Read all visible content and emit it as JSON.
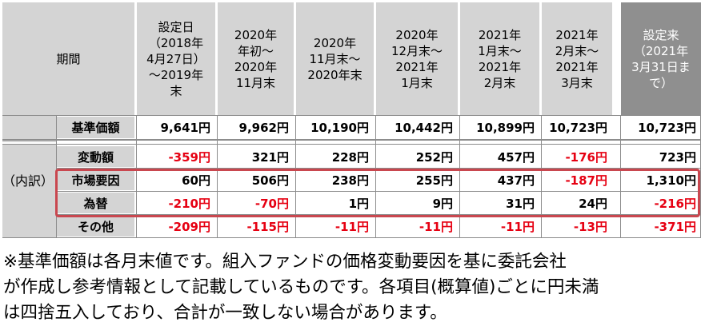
{
  "header": {
    "period_label": "期間",
    "periods": [
      "設定日\n（2018年\n4月27日）\n～2019年\n末",
      "2020年\n年初～\n2020年\n11月末",
      "2020年\n11月末～\n2020年末",
      "2020年\n12月末～\n2021年\n1月末",
      "2021年\n1月末～\n2021年\n2月末",
      "2021年\n2月末～\n2021年\n3月末"
    ],
    "since_inception": "設定来\n（2021年\n3月31日ま\nで）"
  },
  "group_label": "（内訳）",
  "rows": [
    {
      "label": "基準価額",
      "values": [
        "9,641円",
        "9,962円",
        "10,190円",
        "10,442円",
        "10,899円",
        "10,723円"
      ],
      "total": "10,723円"
    },
    {
      "label": "変動額",
      "values": [
        "-359円",
        "321円",
        "228円",
        "252円",
        "457円",
        "-176円"
      ],
      "total": "723円"
    },
    {
      "label": "市場要因",
      "values": [
        "60円",
        "506円",
        "238円",
        "255円",
        "437円",
        "-187円"
      ],
      "total": "1,310円"
    },
    {
      "label": "為替",
      "values": [
        "-210円",
        "-70円",
        "1円",
        "9円",
        "31円",
        "24円"
      ],
      "total": "-216円"
    },
    {
      "label": "その他",
      "values": [
        "-209円",
        "-115円",
        "-11円",
        "-11円",
        "-11円",
        "-13円"
      ],
      "total": "-371円"
    }
  ],
  "note": [
    "※基準価額は各月末値です。組入ファンドの価格変動要因を基に委託会社",
    "が作成し参考情報として記載しているものです。各項目(概算値)ごとに円未満",
    "は四捨五入しており、合計が一致しない場合があります。"
  ],
  "colors": {
    "negative": "#e60012",
    "header_bg": "#d4d4d4",
    "since_bg": "#8f8f8f",
    "highlight_box": "#c9474f"
  }
}
